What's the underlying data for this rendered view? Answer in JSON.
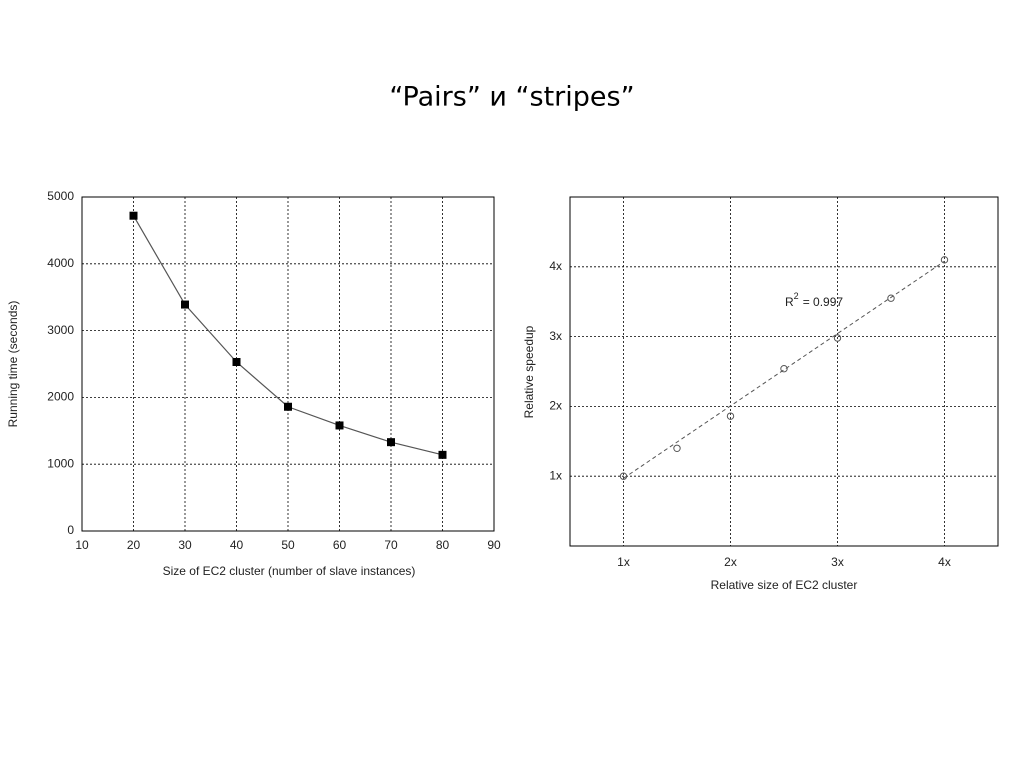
{
  "title": "“Pairs” и “stripes”",
  "chart_data": [
    {
      "type": "line",
      "x_label": "Size of EC2 cluster (number of slave instances)",
      "y_label": "Running time (seconds)",
      "x": [
        20,
        30,
        40,
        50,
        60,
        70,
        80
      ],
      "values": [
        4720,
        3390,
        2530,
        1860,
        1580,
        1330,
        1140
      ],
      "color": "#000000",
      "line_color": "#555555",
      "marker": "square",
      "xlim": [
        10,
        90
      ],
      "xticks": [
        10,
        20,
        30,
        40,
        50,
        60,
        70,
        80,
        90
      ],
      "ylim": [
        0,
        5000
      ],
      "yticks": [
        0,
        1000,
        2000,
        3000,
        4000,
        5000
      ],
      "grid": true
    },
    {
      "type": "scatter",
      "x_label": "Relative size of EC2 cluster",
      "y_label": "Relative speedup",
      "x": [
        1,
        1.5,
        2,
        2.5,
        3,
        3.5,
        4
      ],
      "values": [
        1.0,
        1.4,
        1.86,
        2.54,
        2.98,
        3.55,
        4.1
      ],
      "color": "#555555",
      "marker": "circle",
      "trendline": {
        "x": [
          1,
          4
        ],
        "values": [
          0.97,
          4.08
        ],
        "color": "#555555"
      },
      "annotation": {
        "base": "R",
        "superscript": "2",
        "text": "= 0.997"
      },
      "xlim": [
        0.5,
        4.5
      ],
      "xticks": [
        {
          "value": 1,
          "label": "1x"
        },
        {
          "value": 2,
          "label": "2x"
        },
        {
          "value": 3,
          "label": "3x"
        },
        {
          "value": 4,
          "label": "4x"
        }
      ],
      "ylim": [
        0,
        5
      ],
      "yticks": [
        {
          "value": 1,
          "label": "1x"
        },
        {
          "value": 2,
          "label": "2x"
        },
        {
          "value": 3,
          "label": "3x"
        },
        {
          "value": 4,
          "label": "4x"
        }
      ],
      "grid": true
    }
  ]
}
